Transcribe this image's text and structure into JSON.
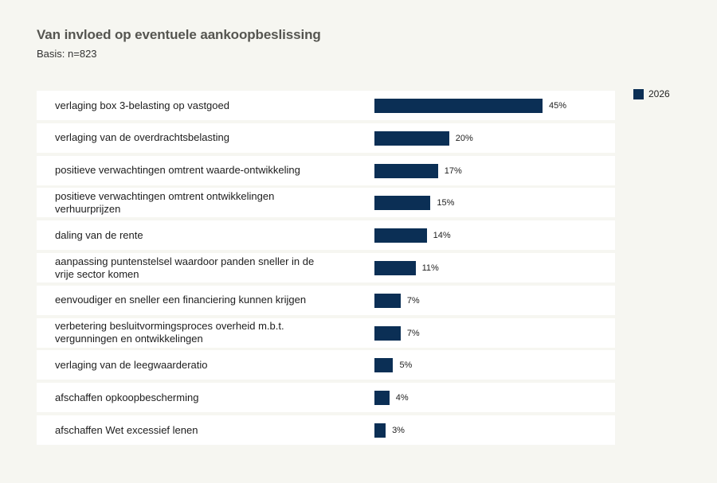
{
  "chart_data": {
    "type": "bar",
    "orientation": "horizontal",
    "title": "Van invloed op eventuele aankoopbeslissing",
    "subtitle": "Basis: n=823",
    "legend_position": "top-right",
    "xlim": [
      0,
      45
    ],
    "color": "#0b2f55",
    "series": [
      {
        "name": "2026",
        "values": [
          45,
          20,
          17,
          15,
          14,
          11,
          7,
          7,
          5,
          4,
          3
        ]
      }
    ],
    "value_labels": [
      "45%",
      "20%",
      "17%",
      "15%",
      "14%",
      "11%",
      "7%",
      "7%",
      "5%",
      "4%",
      "3%"
    ],
    "categories": [
      "verlaging box 3-belasting op vastgoed",
      "verlaging van de overdrachtsbelasting",
      "positieve verwachtingen omtrent waarde-ontwikkeling",
      "positieve verwachtingen omtrent ontwikkelingen verhuurprijzen",
      "daling van de rente",
      "aanpassing puntenstelsel waardoor panden sneller in de vrije sector komen",
      "eenvoudiger en sneller een financiering kunnen krijgen",
      "verbetering besluitvormingsproces overheid m.b.t. vergunningen en ontwikkelingen",
      "verlaging van de leegwaarderatio",
      "afschaffen opkoopbescherming",
      "afschaffen Wet excessief lenen"
    ]
  }
}
